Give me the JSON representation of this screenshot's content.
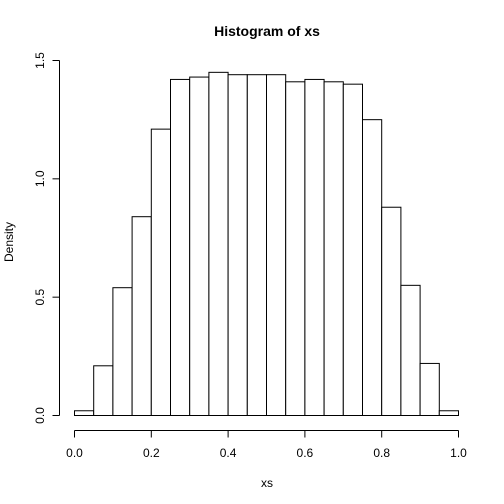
{
  "chart_data": {
    "type": "bar",
    "title": "Histogram of xs",
    "xlabel": "xs",
    "ylabel": "Density",
    "xlim": [
      0.0,
      1.0
    ],
    "ylim": [
      0.0,
      1.5
    ],
    "bin_width": 0.05,
    "bin_starts": [
      0.0,
      0.05,
      0.1,
      0.15,
      0.2,
      0.25,
      0.3,
      0.35,
      0.4,
      0.45,
      0.5,
      0.55,
      0.6,
      0.65,
      0.7,
      0.75,
      0.8,
      0.85,
      0.9,
      0.95
    ],
    "values": [
      0.02,
      0.21,
      0.54,
      0.84,
      1.21,
      1.42,
      1.43,
      1.45,
      1.44,
      1.44,
      1.44,
      1.41,
      1.42,
      1.41,
      1.4,
      1.25,
      0.88,
      0.55,
      0.22,
      0.02
    ],
    "x_ticks": [
      0.0,
      0.2,
      0.4,
      0.6,
      0.8,
      1.0
    ],
    "x_tick_labels": [
      "0.0",
      "0.2",
      "0.4",
      "0.6",
      "0.8",
      "1.0"
    ],
    "y_ticks": [
      0.0,
      0.5,
      1.0,
      1.5
    ],
    "y_tick_labels": [
      "0.0",
      "0.5",
      "1.0",
      "1.5"
    ],
    "grid": false,
    "colors": {
      "bar_fill": "#ffffff",
      "bar_stroke": "#000000"
    }
  }
}
